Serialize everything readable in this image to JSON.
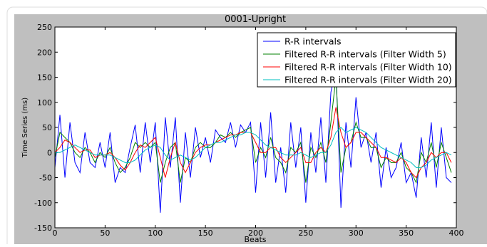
{
  "chart_data": {
    "type": "line",
    "title": "0001-Upright",
    "xlabel": "Beats",
    "ylabel": "Time Series (ms)",
    "x": [
      0,
      5,
      10,
      15,
      20,
      25,
      30,
      35,
      40,
      45,
      50,
      55,
      60,
      65,
      70,
      75,
      80,
      85,
      90,
      95,
      100,
      105,
      110,
      115,
      120,
      125,
      130,
      135,
      140,
      145,
      150,
      155,
      160,
      165,
      170,
      175,
      180,
      185,
      190,
      195,
      200,
      205,
      210,
      215,
      220,
      225,
      230,
      235,
      240,
      245,
      250,
      255,
      260,
      265,
      270,
      275,
      280,
      285,
      290,
      295,
      300,
      305,
      310,
      315,
      320,
      325,
      330,
      335,
      340,
      345,
      350,
      355,
      360,
      365,
      370,
      375,
      380,
      385,
      390,
      395
    ],
    "series": [
      {
        "name": "R-R intervals",
        "color": "#0000ff",
        "values": [
          -30,
          75,
          -50,
          60,
          -20,
          -40,
          40,
          -20,
          -30,
          20,
          -30,
          40,
          -60,
          -30,
          -40,
          10,
          55,
          -40,
          60,
          -20,
          60,
          -120,
          70,
          -30,
          70,
          -100,
          40,
          -50,
          50,
          -10,
          30,
          -20,
          45,
          30,
          20,
          60,
          10,
          55,
          40,
          60,
          -80,
          60,
          -50,
          80,
          -60,
          10,
          -80,
          60,
          -30,
          50,
          -100,
          40,
          -40,
          70,
          -60,
          120,
          170,
          -110,
          60,
          -30,
          110,
          10,
          40,
          -20,
          40,
          -70,
          10,
          -50,
          -30,
          20,
          -60,
          -40,
          -90,
          30,
          -50,
          60,
          -70,
          50,
          -50,
          -60
        ]
      },
      {
        "name": "Filtered R-R intervals (Filter Width 5)",
        "color": "#008000",
        "values": [
          -10,
          40,
          30,
          20,
          0,
          -10,
          10,
          0,
          -20,
          0,
          -10,
          10,
          -20,
          -40,
          -30,
          -10,
          20,
          10,
          20,
          10,
          20,
          -60,
          -20,
          10,
          20,
          -60,
          -10,
          -20,
          10,
          20,
          10,
          10,
          20,
          35,
          30,
          40,
          30,
          40,
          45,
          50,
          -20,
          10,
          -10,
          30,
          -10,
          -20,
          -40,
          10,
          0,
          20,
          -60,
          10,
          -10,
          20,
          -20,
          60,
          150,
          -40,
          10,
          20,
          60,
          30,
          30,
          10,
          10,
          -30,
          -10,
          -20,
          -20,
          0,
          -30,
          -40,
          -60,
          0,
          -20,
          20,
          -30,
          20,
          -10,
          -40
        ]
      },
      {
        "name": "Filtered R-R intervals (Filter Width 10)",
        "color": "#ff0000",
        "values": [
          0,
          10,
          25,
          20,
          10,
          0,
          5,
          5,
          -10,
          -5,
          -5,
          0,
          -10,
          -25,
          -35,
          -20,
          0,
          15,
          10,
          20,
          30,
          -10,
          -50,
          -10,
          20,
          -20,
          -40,
          -20,
          0,
          10,
          15,
          15,
          20,
          25,
          30,
          35,
          35,
          40,
          40,
          40,
          20,
          0,
          0,
          10,
          10,
          -10,
          -20,
          -10,
          0,
          10,
          -20,
          -20,
          0,
          10,
          0,
          30,
          90,
          40,
          10,
          20,
          40,
          40,
          30,
          20,
          10,
          -10,
          -10,
          -15,
          -20,
          -10,
          -20,
          -40,
          -50,
          -30,
          -20,
          0,
          -10,
          0,
          0,
          -20
        ]
      },
      {
        "name": "Filtered R-R intervals (Filter Width 20)",
        "color": "#00bfbf",
        "values": [
          0,
          0,
          5,
          10,
          15,
          10,
          5,
          0,
          -5,
          -5,
          -5,
          -5,
          -10,
          -15,
          -20,
          -20,
          -15,
          -5,
          5,
          10,
          15,
          10,
          -5,
          -15,
          -10,
          -5,
          -10,
          -15,
          -10,
          0,
          10,
          15,
          20,
          20,
          25,
          30,
          35,
          35,
          40,
          40,
          35,
          25,
          15,
          10,
          5,
          0,
          -5,
          -5,
          -5,
          0,
          -5,
          -10,
          -5,
          0,
          0,
          15,
          40,
          50,
          40,
          45,
          50,
          45,
          40,
          30,
          20,
          10,
          5,
          0,
          -5,
          -10,
          -15,
          -20,
          -30,
          -30,
          -25,
          -15,
          -10,
          -5,
          0,
          -5
        ]
      }
    ],
    "xlim": [
      0,
      400
    ],
    "xticks": [
      0,
      50,
      100,
      150,
      200,
      250,
      300,
      350,
      400
    ],
    "ylim": [
      -150,
      250
    ],
    "yticks": [
      -150,
      -100,
      -50,
      0,
      50,
      100,
      150,
      200,
      250
    ],
    "legend": "upper right"
  }
}
